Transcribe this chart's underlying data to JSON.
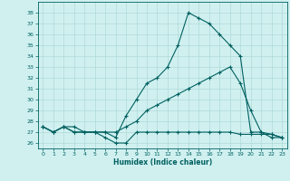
{
  "line1_x": [
    0,
    1,
    2,
    3,
    4,
    5,
    6,
    7,
    8,
    9,
    10,
    11,
    12,
    13,
    14,
    15,
    16,
    17,
    18,
    19,
    20,
    21,
    22,
    23
  ],
  "line1_y": [
    27.5,
    27.0,
    27.5,
    27.0,
    27.0,
    27.0,
    27.0,
    26.5,
    28.5,
    30.0,
    31.5,
    32.0,
    33.0,
    35.0,
    38.0,
    37.5,
    37.0,
    36.0,
    35.0,
    34.0,
    27.0,
    27.0,
    26.5,
    26.5
  ],
  "line2_x": [
    0,
    1,
    2,
    3,
    4,
    5,
    6,
    7,
    8,
    9,
    10,
    11,
    12,
    13,
    14,
    15,
    16,
    17,
    18,
    19,
    20,
    21,
    22,
    23
  ],
  "line2_y": [
    27.5,
    27.0,
    27.5,
    27.5,
    27.0,
    27.0,
    27.0,
    27.0,
    27.5,
    28.0,
    29.0,
    29.5,
    30.0,
    30.5,
    31.0,
    31.5,
    32.0,
    32.5,
    33.0,
    31.5,
    29.0,
    27.0,
    26.8,
    26.5
  ],
  "line3_x": [
    0,
    1,
    2,
    3,
    4,
    5,
    6,
    7,
    8,
    9,
    10,
    11,
    12,
    13,
    14,
    15,
    16,
    17,
    18,
    19,
    20,
    21,
    22,
    23
  ],
  "line3_y": [
    27.5,
    27.0,
    27.5,
    27.0,
    27.0,
    27.0,
    26.5,
    26.0,
    26.0,
    27.0,
    27.0,
    27.0,
    27.0,
    27.0,
    27.0,
    27.0,
    27.0,
    27.0,
    27.0,
    26.8,
    26.8,
    26.8,
    26.8,
    26.5
  ],
  "line_color": "#006060",
  "background_color": "#d0f0f0",
  "grid_color": "#b0d8d8",
  "xlabel": "Humidex (Indice chaleur)",
  "ylim": [
    25.5,
    39.0
  ],
  "xlim": [
    -0.5,
    23.5
  ],
  "yticks": [
    26,
    27,
    28,
    29,
    30,
    31,
    32,
    33,
    34,
    35,
    36,
    37,
    38
  ],
  "xticks": [
    0,
    1,
    2,
    3,
    4,
    5,
    6,
    7,
    8,
    9,
    10,
    11,
    12,
    13,
    14,
    15,
    16,
    17,
    18,
    19,
    20,
    21,
    22,
    23
  ]
}
